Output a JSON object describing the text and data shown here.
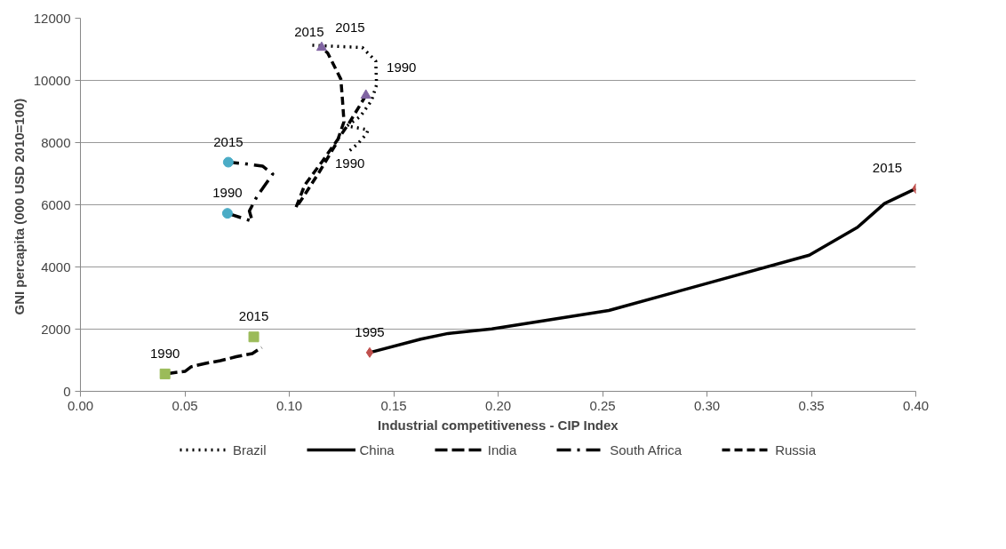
{
  "chart_data": {
    "type": "line",
    "xlabel": "Industrial competitiveness - CIP Index",
    "ylabel": "GNI percapita (000 USD  2010=100)",
    "xlim": [
      0,
      0.4
    ],
    "xticks": [
      {
        "value": 0,
        "label": "0.00"
      },
      {
        "value": 0.05,
        "label": "0.05"
      },
      {
        "value": 0.1,
        "label": "0.10"
      },
      {
        "value": 0.15,
        "label": "0.15"
      },
      {
        "value": 0.2,
        "label": "0.20"
      },
      {
        "value": 0.25,
        "label": "0.25"
      },
      {
        "value": 0.3,
        "label": "0.30"
      },
      {
        "value": 0.35,
        "label": "0.35"
      },
      {
        "value": 0.4,
        "label": "0.40"
      }
    ],
    "ylim": [
      0,
      12000
    ],
    "yticks": [
      0,
      2000,
      4000,
      6000,
      8000,
      10000,
      12000
    ],
    "grid": "y",
    "legend": "bottom",
    "marker": "none",
    "series": [
      {
        "name": "Brazil",
        "color": "#000000",
        "line_style": "dotted",
        "x": [
          0.129,
          0.1326,
          0.137,
          0.1377,
          0.134,
          0.1276,
          0.134,
          0.1394,
          0.1418,
          0.1414,
          0.135,
          0.1095
        ],
        "values": [
          7745,
          7950,
          8280,
          8408,
          8458,
          8535,
          8840,
          9350,
          9860,
          10624,
          11057,
          11134
        ]
      },
      {
        "name": "China",
        "color": "#000000",
        "line_style": "solid",
        "x": [
          0.1385,
          0.163,
          0.176,
          0.197,
          0.253,
          0.301,
          0.349,
          0.372,
          0.385,
          0.4
        ],
        "values": [
          1248,
          1680,
          1860,
          2010,
          2600,
          3490,
          4380,
          5270,
          6040,
          6520
        ]
      },
      {
        "name": "India",
        "color": "#000000",
        "line_style": "longdash",
        "x": [
          0.0405,
          0.0502,
          0.053,
          0.06,
          0.067,
          0.0746,
          0.0823,
          0.0868
        ],
        "values": [
          560,
          645,
          790,
          900,
          985,
          1113,
          1215,
          1410
        ]
      },
      {
        "name": "South Africa",
        "color": "#000000",
        "line_style": "dashdot",
        "x": [
          0.0704,
          0.0823,
          0.0809,
          0.0844,
          0.0921,
          0.0872,
          0.0795,
          0.0708
        ],
        "values": [
          5725,
          5470,
          5800,
          6250,
          6990,
          7245,
          7312,
          7370
        ]
      },
      {
        "name": "Russia",
        "color": "#000000",
        "line_style": "dashed",
        "x": [
          0.1367,
          0.1283,
          0.1158,
          0.1074,
          0.1032,
          0.1067,
          0.1144,
          0.1227,
          0.1262,
          0.1255,
          0.1247,
          0.1184,
          0.1155
        ],
        "values": [
          9520,
          8586,
          7396,
          6632,
          5911,
          6250,
          7057,
          7992,
          8670,
          9350,
          10040,
          10880,
          11057
        ]
      },
      {
        "type": "scatter",
        "marker": "triangle",
        "color": "#8064a2",
        "x": [
          0.1367,
          0.1155
        ],
        "values": [
          9520,
          11057
        ]
      },
      {
        "type": "scatter",
        "marker": "circle",
        "color": "#4bacc6",
        "x": [
          0.0704,
          0.0708
        ],
        "values": [
          5725,
          7370
        ]
      },
      {
        "type": "scatter",
        "marker": "square",
        "color": "#9bbb59",
        "x": [
          0.0405,
          0.083
        ],
        "values": [
          560,
          1750
        ]
      },
      {
        "type": "scatter",
        "marker": "diamond",
        "color": "#c0504d",
        "x": [
          0.1385,
          0.4
        ],
        "values": [
          1248,
          6520
        ]
      }
    ],
    "annotations": [
      {
        "text": "2015",
        "x": 0.1095,
        "y": 11134
      },
      {
        "text": "1990",
        "x": 0.129,
        "y": 7745
      },
      {
        "text": "2015",
        "x": 0.1155,
        "y": 11057
      },
      {
        "text": "1990",
        "x": 0.1367,
        "y": 9520
      },
      {
        "text": "2015",
        "x": 0.0708,
        "y": 7370
      },
      {
        "text": "1990",
        "x": 0.0704,
        "y": 5725
      },
      {
        "text": "1990",
        "x": 0.0405,
        "y": 560
      },
      {
        "text": "2015",
        "x": 0.083,
        "y": 1750
      },
      {
        "text": "1995",
        "x": 0.1385,
        "y": 1248
      },
      {
        "text": "2015",
        "x": 0.4,
        "y": 6520
      }
    ]
  }
}
